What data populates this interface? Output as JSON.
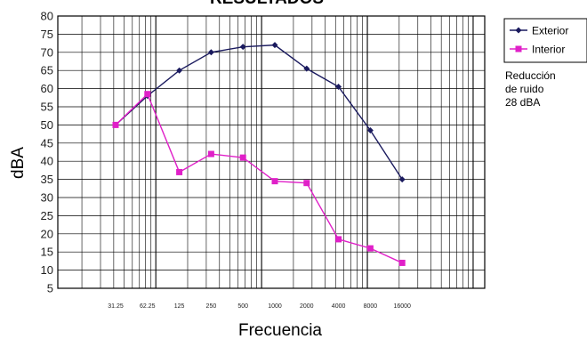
{
  "chart_data": {
    "type": "line",
    "title": "RESULTADOS",
    "xlabel": "Frecuencia",
    "ylabel": "dBA",
    "categories": [
      "31.25",
      "62.25",
      "125",
      "250",
      "500",
      "1000",
      "2000",
      "4000",
      "8000",
      "16000"
    ],
    "series": [
      {
        "name": "Exterior",
        "color": "#1a1a5e",
        "marker": "diamond",
        "values": [
          50,
          58,
          65,
          70,
          71.5,
          72,
          65.5,
          60.5,
          48.5,
          35
        ]
      },
      {
        "name": "Interior",
        "color": "#e020c8",
        "marker": "square",
        "values": [
          50,
          58.5,
          37,
          42,
          41,
          34.5,
          34,
          18.5,
          16,
          12
        ]
      }
    ],
    "ylim": [
      5,
      80
    ],
    "yticks": [
      5,
      10,
      15,
      20,
      25,
      30,
      35,
      40,
      45,
      50,
      55,
      60,
      65,
      70,
      75,
      80
    ],
    "grid": true,
    "legend_position": "top-right"
  },
  "annotation": {
    "lines": [
      "Reducción",
      "de ruido",
      "28 dBA"
    ]
  }
}
